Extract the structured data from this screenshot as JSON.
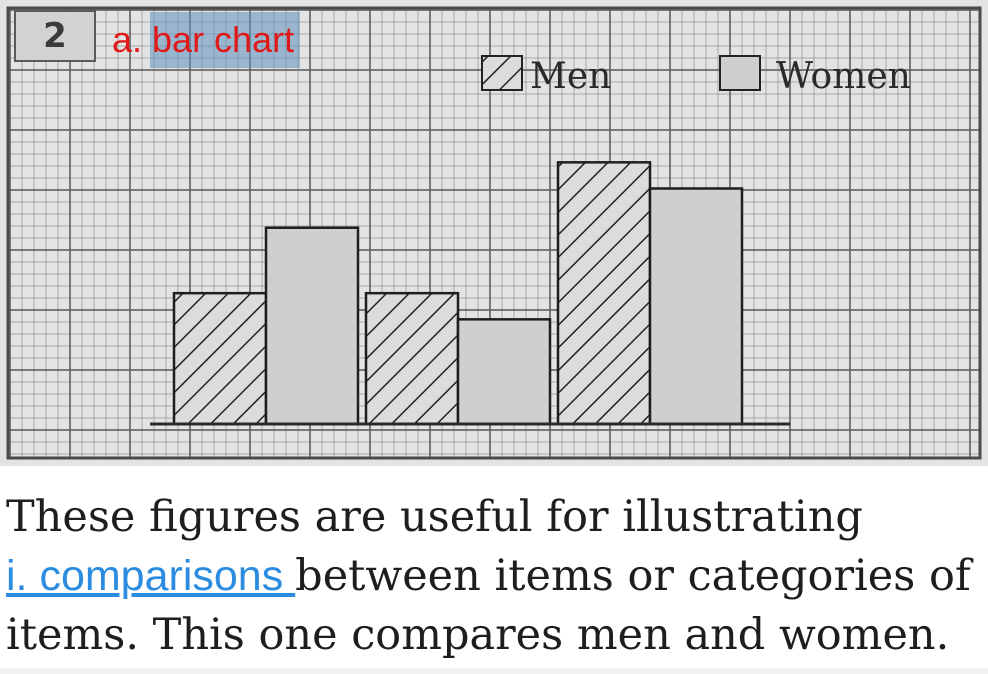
{
  "question": {
    "number": "2",
    "answer_label": "a. bar chart"
  },
  "colors": {
    "figure_background": "#e3e3e3",
    "grid_line": "#7a7a7a",
    "men_bar_fill": "#dcdcdc",
    "women_bar_fill": "#cfcfcf",
    "answer_text": "#e01818",
    "blank_text": "#2c8de0"
  },
  "chart_data": {
    "type": "bar",
    "title": "",
    "xlabel": "",
    "ylabel": "",
    "categories": [
      "",
      "",
      ""
    ],
    "series": [
      {
        "name": "Men",
        "pattern": "hatched",
        "values": [
          5,
          5,
          10
        ]
      },
      {
        "name": "Women",
        "pattern": "solid",
        "values": [
          7.5,
          4,
          9
        ]
      }
    ],
    "ylim": [
      0,
      12
    ],
    "grid": true,
    "legend": {
      "position": "top-right",
      "items": [
        "Men",
        "Women"
      ]
    }
  },
  "passage": {
    "line1": "These figures are useful for illustrating",
    "blank": "i. comparisons ",
    "line2_rest": " between items or categories of",
    "line3": "items. This one compares men and women."
  }
}
